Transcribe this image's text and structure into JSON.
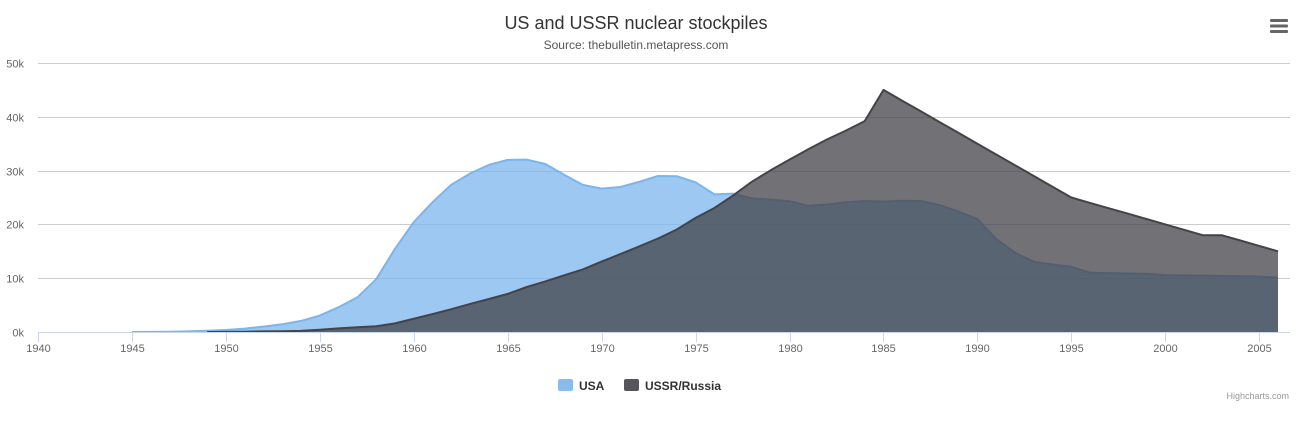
{
  "chart_data": {
    "type": "area",
    "title": "US and USSR nuclear stockpiles",
    "subtitle": "Source: thebulletin.metapress.com",
    "xlabel": "",
    "ylabel": "",
    "xlim": [
      1940,
      2006
    ],
    "ylim": [
      0,
      50000
    ],
    "x_ticks": [
      1940,
      1945,
      1950,
      1955,
      1960,
      1965,
      1970,
      1975,
      1980,
      1985,
      1990,
      1995,
      2000,
      2005
    ],
    "y_ticks": [
      0,
      10000,
      20000,
      30000,
      40000,
      50000
    ],
    "y_tick_labels": [
      "0k",
      "10k",
      "20k",
      "30k",
      "40k",
      "50k"
    ],
    "grid": "horizontal",
    "legend": "bottom-center",
    "credits": "Highcharts.com",
    "series": [
      {
        "name": "USA",
        "color": "#7cb5ec",
        "x": [
          1945,
          1946,
          1947,
          1948,
          1949,
          1950,
          1951,
          1952,
          1953,
          1954,
          1955,
          1956,
          1957,
          1958,
          1959,
          1960,
          1961,
          1962,
          1963,
          1964,
          1965,
          1966,
          1967,
          1968,
          1969,
          1970,
          1971,
          1972,
          1973,
          1974,
          1975,
          1976,
          1977,
          1978,
          1979,
          1980,
          1981,
          1982,
          1983,
          1984,
          1985,
          1986,
          1987,
          1988,
          1989,
          1990,
          1991,
          1992,
          1993,
          1994,
          1995,
          1996,
          1997,
          1998,
          1999,
          2000,
          2001,
          2002,
          2003,
          2004,
          2005,
          2006
        ],
        "values": [
          6,
          11,
          32,
          110,
          235,
          369,
          640,
          1005,
          1436,
          2063,
          3057,
          4618,
          6444,
          9822,
          15468,
          20434,
          24126,
          27387,
          29459,
          31056,
          31982,
          32040,
          31233,
          29224,
          27342,
          26662,
          26956,
          27912,
          28999,
          28965,
          27826,
          25579,
          25722,
          24826,
          24605,
          24304,
          23464,
          23708,
          24099,
          24357,
          24237,
          24401,
          24344,
          23586,
          22380,
          21004,
          17287,
          14747,
          13076,
          12555,
          12144,
          11009,
          10950,
          10871,
          10824,
          10577,
          10527,
          10475,
          10421,
          10358,
          10295,
          10104
        ]
      },
      {
        "name": "USSR/Russia",
        "color": "#434348",
        "x": [
          1949,
          1950,
          1951,
          1952,
          1953,
          1954,
          1955,
          1956,
          1957,
          1958,
          1959,
          1960,
          1961,
          1962,
          1963,
          1964,
          1965,
          1966,
          1967,
          1968,
          1969,
          1970,
          1971,
          1972,
          1973,
          1974,
          1975,
          1976,
          1977,
          1978,
          1979,
          1980,
          1981,
          1982,
          1983,
          1984,
          1985,
          1986,
          1987,
          1988,
          1989,
          1990,
          1991,
          1992,
          1993,
          1994,
          1995,
          1996,
          1997,
          1998,
          1999,
          2000,
          2001,
          2002,
          2003,
          2004,
          2005,
          2006
        ],
        "values": [
          5,
          25,
          50,
          120,
          150,
          200,
          426,
          660,
          869,
          1060,
          1605,
          2471,
          3322,
          4238,
          5221,
          6129,
          7089,
          8339,
          9399,
          10538,
          11643,
          13092,
          14478,
          15915,
          17385,
          19055,
          21205,
          23044,
          25393,
          27935,
          30062,
          32049,
          33952,
          35804,
          37431,
          39197,
          45000,
          43000,
          41000,
          39000,
          37000,
          35000,
          33000,
          31000,
          29000,
          27000,
          25000,
          24000,
          23000,
          22000,
          21000,
          20000,
          19000,
          18000,
          18000,
          17000,
          16000,
          15000
        ]
      }
    ]
  }
}
